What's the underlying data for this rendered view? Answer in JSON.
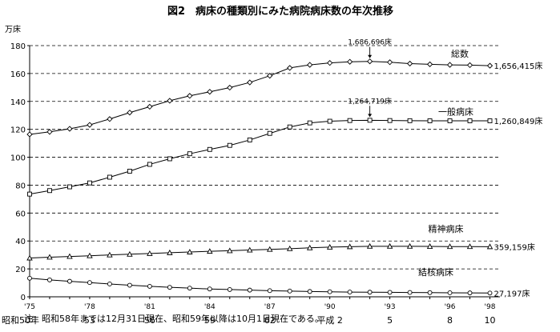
{
  "title": "図2　病床の種類別にみた病院病床数の年次推移",
  "note": "注：昭和58年までは12月31日現在、昭和59年以降は10月1日現在である。",
  "chart_data": {
    "type": "line",
    "title": "図2　病床の種類別にみた病院病床数の年次推移",
    "ylabel": "万床",
    "ylim": [
      0,
      180
    ],
    "yticks": [
      0,
      20,
      40,
      60,
      80,
      100,
      120,
      140,
      160,
      180
    ],
    "grid": "horizontal dashed",
    "x": [
      1975,
      1976,
      1977,
      1978,
      1979,
      1980,
      1981,
      1982,
      1983,
      1984,
      1985,
      1986,
      1987,
      1988,
      1989,
      1990,
      1991,
      1992,
      1993,
      1994,
      1995,
      1996,
      1997,
      1998
    ],
    "xticks": [
      {
        "year": 1975,
        "label": "'75",
        "era": "昭和50年"
      },
      {
        "year": 1978,
        "label": "'78",
        "era": "53"
      },
      {
        "year": 1981,
        "label": "'81",
        "era": "56"
      },
      {
        "year": 1984,
        "label": "'84",
        "era": "59"
      },
      {
        "year": 1987,
        "label": "'87",
        "era": "62"
      },
      {
        "year": 1990,
        "label": "'90",
        "era": "平成 2"
      },
      {
        "year": 1993,
        "label": "'93",
        "era": "5"
      },
      {
        "year": 1996,
        "label": "'96",
        "era": "8"
      },
      {
        "year": 1998,
        "label": "'98",
        "era": "10"
      }
    ],
    "series": [
      {
        "name": "総数",
        "marker": "diamond",
        "values": [
          116.4,
          118.2,
          120.4,
          123.2,
          127.4,
          132.0,
          136.2,
          140.5,
          144.0,
          146.9,
          149.9,
          153.6,
          158.4,
          164.0,
          166.2,
          167.6,
          168.4,
          168.7,
          168.1,
          167.1,
          166.6,
          166.2,
          166.0,
          165.6
        ]
      },
      {
        "name": "一般病床",
        "marker": "square",
        "values": [
          73.6,
          76.1,
          78.8,
          81.6,
          85.7,
          90.0,
          94.9,
          98.9,
          102.5,
          105.6,
          108.5,
          112.4,
          117.1,
          121.7,
          124.6,
          125.8,
          126.3,
          126.5,
          126.3,
          126.2,
          126.1,
          126.1,
          126.1,
          126.1
        ]
      },
      {
        "name": "精神病床",
        "marker": "triangle",
        "values": [
          27.8,
          28.4,
          28.9,
          29.4,
          30.0,
          30.5,
          31.0,
          31.6,
          32.1,
          32.6,
          33.0,
          33.5,
          34.0,
          34.5,
          35.1,
          35.6,
          35.9,
          36.2,
          36.2,
          36.2,
          36.1,
          36.0,
          36.0,
          35.9
        ]
      },
      {
        "name": "結核病床",
        "marker": "circle",
        "values": [
          13.3,
          12.1,
          11.1,
          10.2,
          9.2,
          8.3,
          7.5,
          6.8,
          6.2,
          5.6,
          5.2,
          4.8,
          4.4,
          4.1,
          3.8,
          3.6,
          3.4,
          3.3,
          3.2,
          3.1,
          3.0,
          2.9,
          2.8,
          2.7
        ]
      }
    ],
    "end_labels": [
      "1,656,415床",
      "1,260,849床",
      "359,159床",
      "27,197床"
    ],
    "peak_annotations": [
      {
        "series": "総数",
        "year": 1992,
        "value": 168.7,
        "label": "1,686,696床"
      },
      {
        "series": "一般病床",
        "year": 1992,
        "value": 126.5,
        "label": "1,264,719床"
      }
    ],
    "series_labels": [
      {
        "name": "総数",
        "anchor_year": 1996.5,
        "anchor_value": 172
      },
      {
        "name": "一般病床",
        "anchor_year": 1996.3,
        "anchor_value": 130.5
      },
      {
        "name": "精神病床",
        "anchor_year": 1995.8,
        "anchor_value": 46.5
      },
      {
        "name": "結核病床",
        "anchor_year": 1995.3,
        "anchor_value": 15.5
      }
    ]
  }
}
